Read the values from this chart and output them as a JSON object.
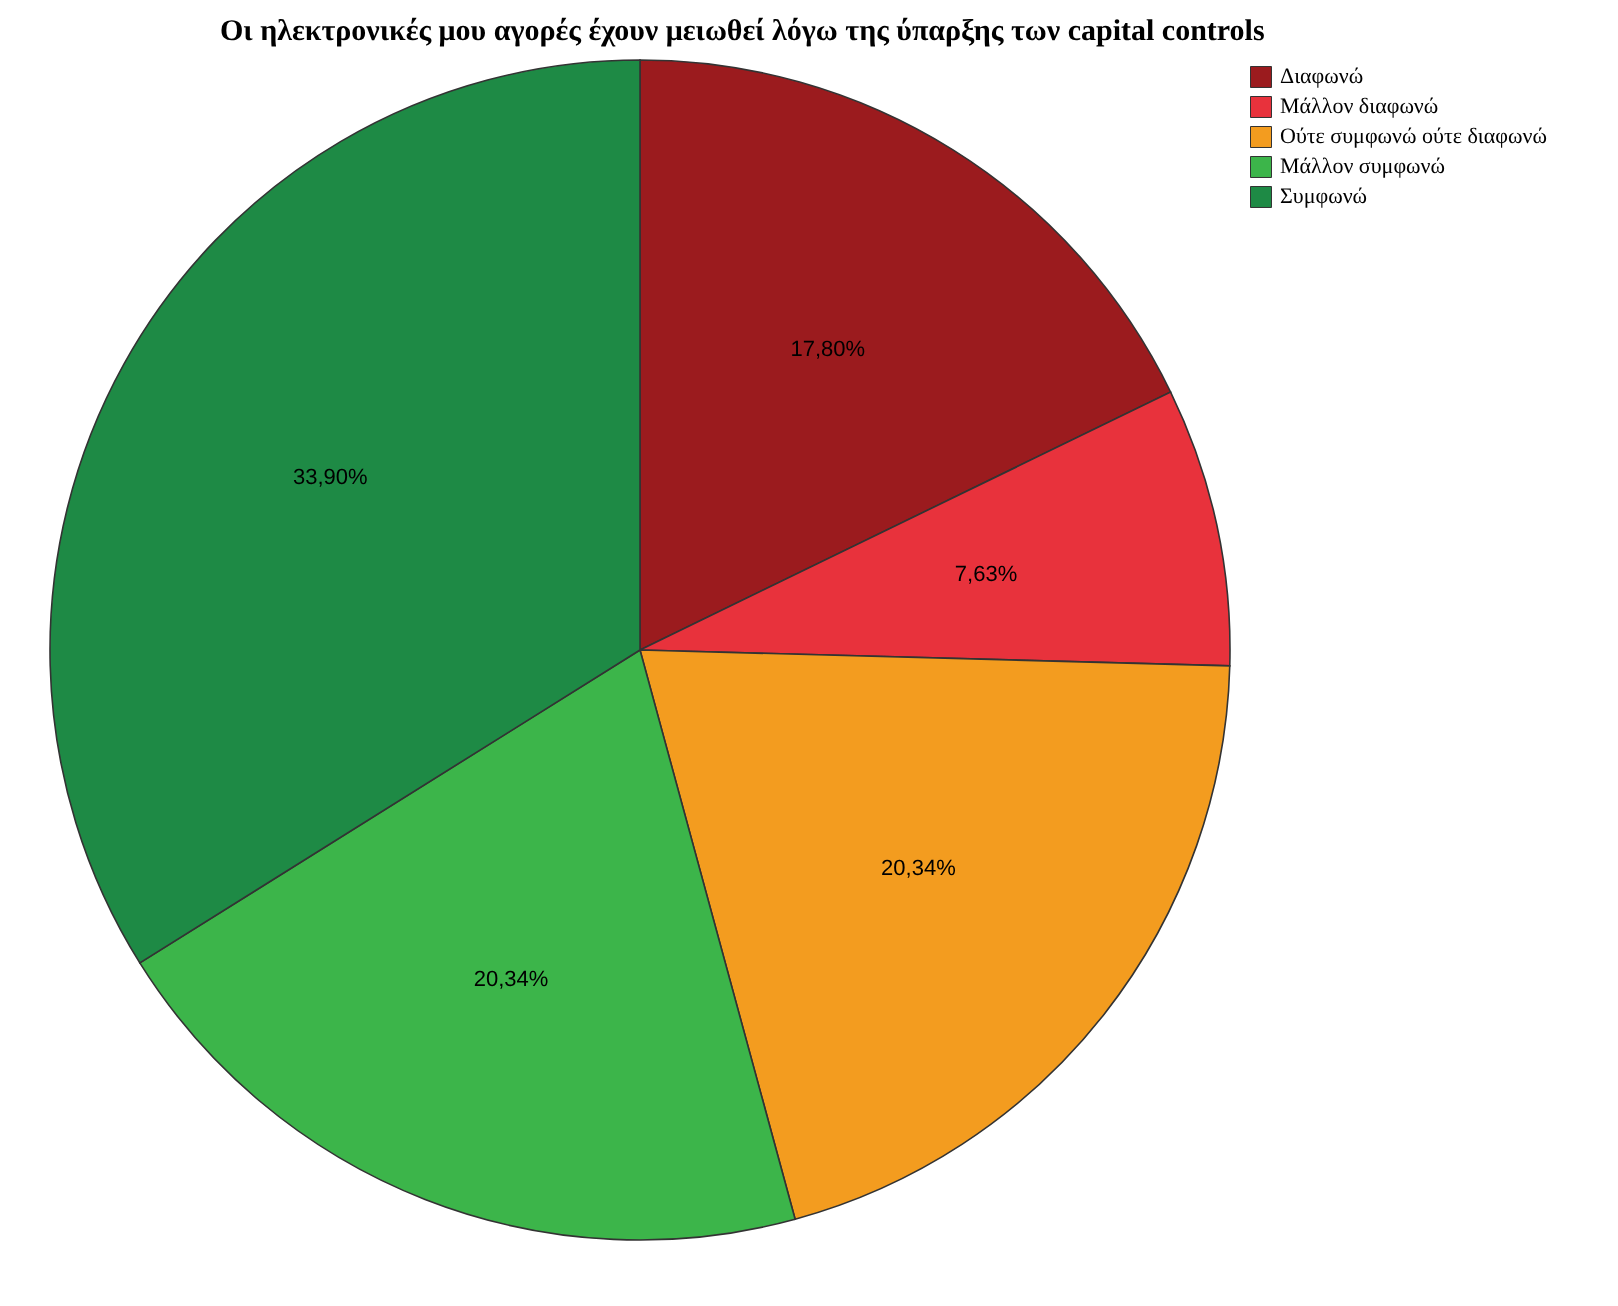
{
  "chart_data": {
    "type": "pie",
    "title": "Οι ηλεκτρονικές μου αγορές έχουν μειωθεί λόγω της ύπαρξης των capital controls",
    "categories": [
      "Διαφωνώ",
      "Μάλλον διαφωνώ",
      "Ούτε συμφωνώ ούτε διαφωνώ",
      "Μάλλον συμφωνώ",
      "Συμφωνώ"
    ],
    "values": [
      17.8,
      7.63,
      20.34,
      20.34,
      33.9
    ],
    "colors": [
      "#9b1b1e",
      "#e8323c",
      "#f39c1f",
      "#3cb54a",
      "#1e8a45"
    ],
    "value_labels": [
      "17,80%",
      "7,63%",
      "20,34%",
      "20,34%",
      "33,90%"
    ],
    "legend": "top right"
  }
}
